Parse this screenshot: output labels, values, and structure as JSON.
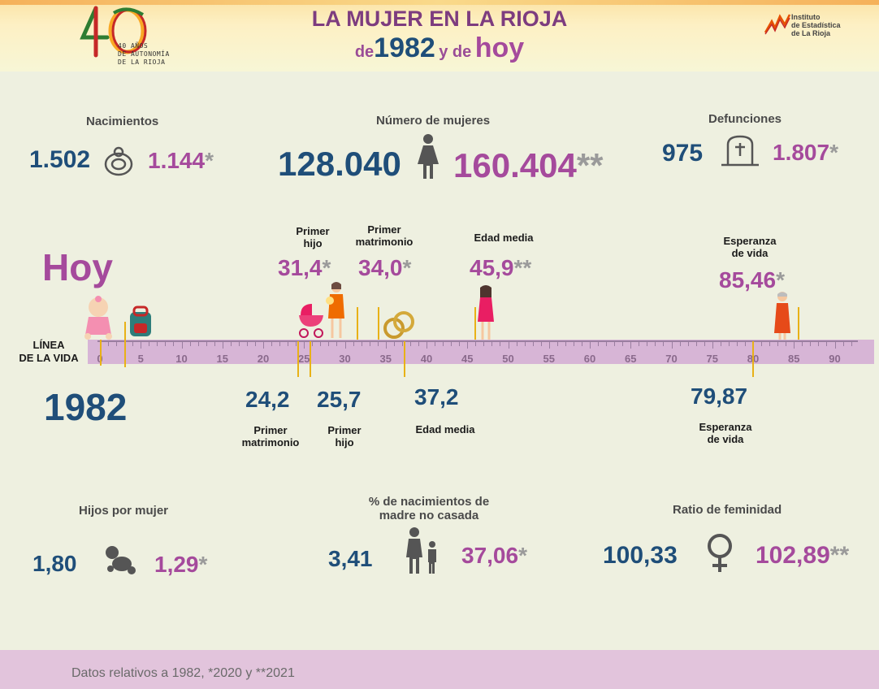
{
  "header": {
    "title": "LA MUJER EN LA RIOJA",
    "subtitle_de1": "de",
    "subtitle_year": "1982",
    "subtitle_de2": "y de",
    "subtitle_hoy": "hoy",
    "logo40_line1": "40 AÑOS",
    "logo40_line2": "DE AUTONOMÍA",
    "logo40_line3": "DE LA RIOJA",
    "institute_line1": "Instituto",
    "institute_line2": "de Estadística",
    "institute_line3": "de La Rioja"
  },
  "colors": {
    "value_1982": "#1f4e79",
    "value_hoy": "#a54a9c",
    "timeline_bar": "#d7b5d6",
    "marker": "#e8b117"
  },
  "stats_top": {
    "nacimientos": {
      "label": "Nacimientos",
      "v1982": "1.502",
      "vhoy": "1.144",
      "mark": "*",
      "icon": "pacifier-icon"
    },
    "mujeres": {
      "label": "Número de mujeres",
      "v1982": "128.040",
      "vhoy": "160.404",
      "mark": "**",
      "icon": "woman-icon"
    },
    "defunciones": {
      "label": "Defunciones",
      "v1982": "975",
      "vhoy": "1.807",
      "mark": "*",
      "icon": "tombstone-icon"
    }
  },
  "timeline": {
    "label_line1": "LÍNEA",
    "label_line2": "DE LA VIDA",
    "hoy_label": "Hoy",
    "year_label": "1982",
    "ticks": [
      "0",
      "5",
      "10",
      "15",
      "20",
      "25",
      "30",
      "35",
      "40",
      "45",
      "50",
      "55",
      "60",
      "65",
      "70",
      "75",
      "80",
      "85",
      "90"
    ],
    "hoy_events": [
      {
        "label1": "Primer",
        "label2": "hijo",
        "value": "31,4",
        "mark": "*",
        "age": 31.4
      },
      {
        "label1": "Primer",
        "label2": "matrimonio",
        "value": "34,0",
        "mark": "*",
        "age": 34.0
      },
      {
        "label1": "Edad media",
        "label2": "",
        "value": "45,9",
        "mark": "**",
        "age": 45.9
      },
      {
        "label1": "Esperanza",
        "label2": "de vida",
        "value": "85,46",
        "mark": "*",
        "age": 85.46
      }
    ],
    "events_1982": [
      {
        "value": "24,2",
        "label1": "Primer",
        "label2": "matrimonio",
        "age": 24.2
      },
      {
        "value": "25,7",
        "label1": "Primer",
        "label2": "hijo",
        "age": 25.7
      },
      {
        "value": "37,2",
        "label1": "Edad media",
        "label2": "",
        "age": 37.2
      },
      {
        "value": "79,87",
        "label1": "Esperanza",
        "label2": "de vida",
        "age": 79.87
      }
    ]
  },
  "stats_bottom": {
    "hijos": {
      "label": "Hijos por mujer",
      "v1982": "1,80",
      "vhoy": "1,29",
      "mark": "*",
      "icon": "baby-crawling-icon"
    },
    "no_casada": {
      "label_line1": "% de nacimientos de",
      "label_line2": "madre no casada",
      "v1982": "3,41",
      "vhoy": "37,06",
      "mark": "*",
      "icon": "mother-child-icon"
    },
    "feminidad": {
      "label": "Ratio de feminidad",
      "v1982": "100,33",
      "vhoy": "102,89",
      "mark": "**",
      "icon": "female-symbol-icon"
    }
  },
  "footer": {
    "note": "Datos relativos a 1982, *2020 y **2021"
  }
}
